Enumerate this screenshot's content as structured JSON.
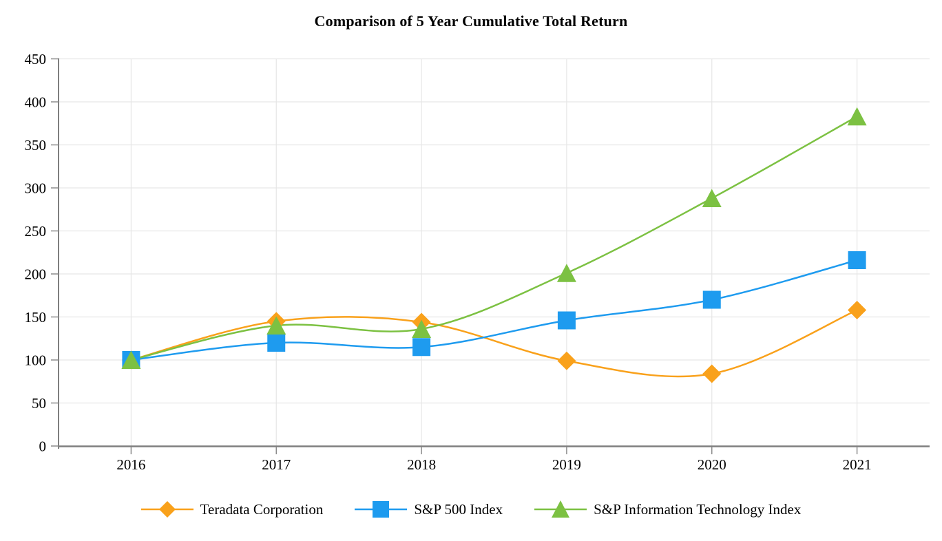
{
  "chart_data": {
    "type": "line",
    "title": "Comparison of 5 Year Cumulative Total Return",
    "categories": [
      "2016",
      "2017",
      "2018",
      "2019",
      "2020",
      "2021"
    ],
    "series": [
      {
        "name": "Teradata Corporation",
        "marker": "diamond",
        "color": "#F9A11B",
        "values": [
          100,
          145,
          144,
          99,
          84,
          158
        ]
      },
      {
        "name": "S&P 500 Index",
        "marker": "square",
        "color": "#1E9BEF",
        "values": [
          100,
          120,
          115,
          146,
          170,
          216
        ]
      },
      {
        "name": "S&P Information Technology Index",
        "marker": "triangle",
        "color": "#7CC142",
        "values": [
          100,
          140,
          136,
          201,
          288,
          383
        ]
      }
    ],
    "xlabel": "",
    "ylabel": "",
    "ylim": [
      0,
      450
    ],
    "ytick_step": 50,
    "yticks": [
      0,
      50,
      100,
      150,
      200,
      250,
      300,
      350,
      400,
      450
    ],
    "grid": true,
    "legend_position": "bottom",
    "colors": {
      "axis": "#7F7F7F",
      "gridline": "#E6E6E6",
      "tick": "#8C8C8C",
      "background": "#FFFFFF",
      "text": "#000000"
    }
  }
}
